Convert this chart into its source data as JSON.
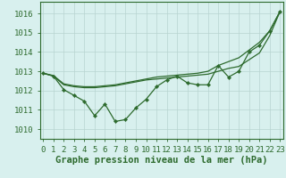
{
  "xlabel": "Graphe pression niveau de la mer (hPa)",
  "x": [
    0,
    1,
    2,
    3,
    4,
    5,
    6,
    7,
    8,
    9,
    10,
    11,
    12,
    13,
    14,
    15,
    16,
    17,
    18,
    19,
    20,
    21,
    22,
    23
  ],
  "line_jagged": [
    1012.9,
    1012.75,
    1012.05,
    1011.75,
    1011.45,
    1010.7,
    1011.3,
    1010.4,
    1010.5,
    1011.1,
    1011.55,
    1012.2,
    1012.55,
    1012.75,
    1012.4,
    1012.3,
    1012.3,
    1013.3,
    1012.7,
    1013.0,
    1014.0,
    1014.35,
    1015.1,
    1016.1
  ],
  "line_upper": [
    1012.9,
    1012.78,
    1012.35,
    1012.25,
    1012.2,
    1012.2,
    1012.25,
    1012.3,
    1012.4,
    1012.5,
    1012.6,
    1012.7,
    1012.75,
    1012.8,
    1012.85,
    1012.9,
    1013.0,
    1013.3,
    1013.5,
    1013.7,
    1014.1,
    1014.5,
    1015.1,
    1016.1
  ],
  "line_lower": [
    1012.9,
    1012.75,
    1012.3,
    1012.2,
    1012.15,
    1012.15,
    1012.2,
    1012.25,
    1012.35,
    1012.45,
    1012.55,
    1012.6,
    1012.65,
    1012.7,
    1012.75,
    1012.8,
    1012.85,
    1013.0,
    1013.15,
    1013.25,
    1013.6,
    1013.95,
    1014.85,
    1016.1
  ],
  "ylim": [
    1009.5,
    1016.6
  ],
  "yticks": [
    1010,
    1011,
    1012,
    1013,
    1014,
    1015,
    1016
  ],
  "xlim": [
    -0.3,
    23.3
  ],
  "line_color": "#2d6a2d",
  "bg_color": "#d8f0ee",
  "grid_color": "#b8d4d0",
  "label_color": "#2d6a2d",
  "xlabel_fontsize": 7.5,
  "tick_fontsize": 6.5
}
